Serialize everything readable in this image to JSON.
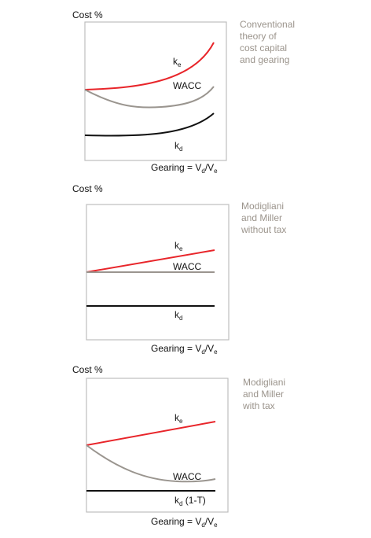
{
  "colors": {
    "ke": "#e8252a",
    "wacc": "#9a958f",
    "kd": "#111111",
    "frame": "#bdbdbd",
    "caption": "#9b948c"
  },
  "panels": [
    {
      "id": "conventional",
      "y_label": "Cost %",
      "x_label": {
        "main": "Gearing = V",
        "sub1": "d",
        "mid": "/V",
        "sub2": "e"
      },
      "caption": [
        "Conventional",
        "theory of",
        "cost capital",
        "and gearing"
      ],
      "curves": {
        "ke": {
          "label": "k",
          "sub": "e"
        },
        "wacc": {
          "label": "WACC"
        },
        "kd": {
          "label": "k",
          "sub": "d",
          "suffix": ""
        }
      }
    },
    {
      "id": "mm-without-tax",
      "y_label": "Cost %",
      "x_label": {
        "main": "Gearing = V",
        "sub1": "d",
        "mid": "/V",
        "sub2": "e"
      },
      "caption": [
        "Modigliani",
        "and Miller",
        "without tax"
      ],
      "curves": {
        "ke": {
          "label": "k",
          "sub": "e"
        },
        "wacc": {
          "label": "WACC"
        },
        "kd": {
          "label": "k",
          "sub": "d",
          "suffix": ""
        }
      }
    },
    {
      "id": "mm-with-tax",
      "y_label": "Cost %",
      "x_label": {
        "main": "Gearing = V",
        "sub1": "d",
        "mid": "/V",
        "sub2": "e"
      },
      "caption": [
        "Modigliani",
        "and Miller",
        "with tax"
      ],
      "curves": {
        "ke": {
          "label": "k",
          "sub": "e"
        },
        "wacc": {
          "label": "WACC"
        },
        "kd": {
          "label": "k",
          "sub": "d",
          "suffix": " (1-T)"
        }
      }
    }
  ]
}
